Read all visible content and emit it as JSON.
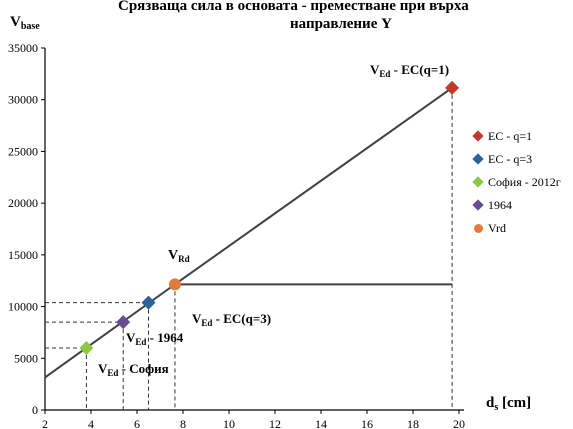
{
  "title_line1": "Срязваща сила в основата - преместване при върха",
  "title_line2": "направление Y",
  "y_axis_label": "V",
  "y_axis_label_sub": "base",
  "x_axis_label": "d",
  "x_axis_label_sub": "s",
  "x_axis_label_unit": " [cm]",
  "legend": [
    {
      "label": "EC - q=1",
      "color": "#c0392b",
      "icon": "diamond"
    },
    {
      "label": "EC - q=3",
      "color": "#2e5f9e",
      "icon": "diamond"
    },
    {
      "label": "София - 2012г",
      "color": "#8dc63f",
      "icon": "diamond"
    },
    {
      "label": "1964",
      "color": "#6a4c93",
      "icon": "diamond"
    },
    {
      "label": "Vrd",
      "color": "#e07b39",
      "icon": "circle"
    }
  ],
  "annotations": {
    "ec_q1_pre": "V",
    "ec_q1_sub": "Ed",
    "ec_q1_post": " - EC(q=1)",
    "vrd_pre": "V",
    "vrd_sub": "Rd",
    "ec_q3_pre": "V",
    "ec_q3_sub": "Ed",
    "ec_q3_post": " - EC(q=3)",
    "y1964_pre": "V",
    "y1964_sub": "Ed",
    "y1964_post": " - 1964",
    "sofia_pre": "V",
    "sofia_sub": "Ed",
    "sofia_post": " - София"
  },
  "chart_data": {
    "type": "line",
    "title": "Срязваща сила в основата - преместване при върха направление Y",
    "xlabel": "ds [cm]",
    "ylabel": "Vbase",
    "xlim": [
      2,
      20
    ],
    "ylim": [
      0,
      35000
    ],
    "x_ticks": [
      "2",
      "4",
      "6",
      "8",
      "10",
      "12",
      "14",
      "16",
      "18",
      "20"
    ],
    "y_ticks": [
      "0",
      "5000",
      "10000",
      "15000",
      "20000",
      "25000",
      "30000",
      "35000"
    ],
    "grid": false,
    "legend_position": "right",
    "capacity_curve": {
      "x": [
        2,
        7.65,
        19.7
      ],
      "y": [
        3150,
        12150,
        12150
      ]
    },
    "points": [
      {
        "name": "EC - q=1",
        "x": 19.7,
        "y": 31150,
        "color": "#c0392b"
      },
      {
        "name": "EC - q=3",
        "x": 6.5,
        "y": 10380,
        "color": "#2e5f9e"
      },
      {
        "name": "София - 2012г",
        "x": 3.8,
        "y": 6000,
        "color": "#8dc63f"
      },
      {
        "name": "1964",
        "x": 5.4,
        "y": 8500,
        "color": "#6a4c93"
      },
      {
        "name": "Vrd",
        "x": 7.65,
        "y": 12150,
        "color": "#e07b39"
      }
    ]
  }
}
